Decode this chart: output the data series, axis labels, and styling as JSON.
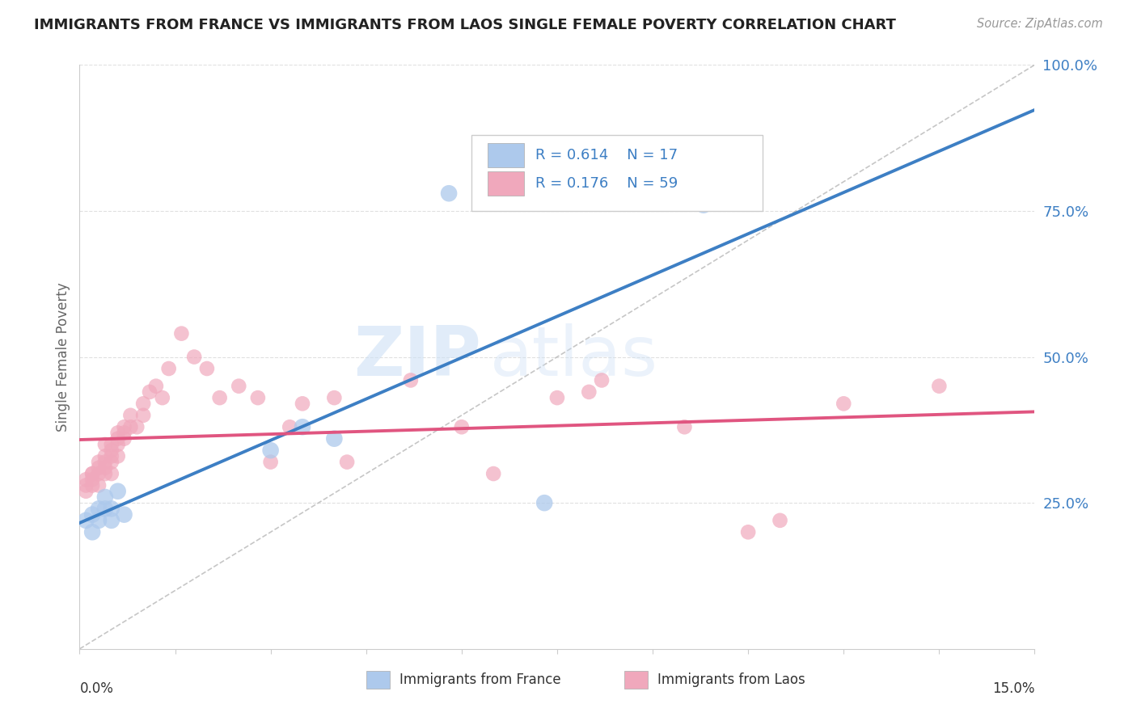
{
  "title": "IMMIGRANTS FROM FRANCE VS IMMIGRANTS FROM LAOS SINGLE FEMALE POVERTY CORRELATION CHART",
  "source": "Source: ZipAtlas.com",
  "ylabel": "Single Female Poverty",
  "xlim": [
    0.0,
    0.15
  ],
  "ylim": [
    0.0,
    1.0
  ],
  "france_R": 0.614,
  "france_N": 17,
  "laos_R": 0.176,
  "laos_N": 59,
  "france_color": "#adc9ec",
  "france_line_color": "#3d7fc4",
  "laos_color": "#f0a8bc",
  "laos_line_color": "#e05580",
  "ref_line_color": "#b8b8b8",
  "background_color": "#ffffff",
  "watermark_zip": "ZIP",
  "watermark_atlas": "atlas",
  "france_x": [
    0.001,
    0.002,
    0.002,
    0.003,
    0.003,
    0.004,
    0.004,
    0.005,
    0.005,
    0.006,
    0.007,
    0.03,
    0.035,
    0.04,
    0.058,
    0.073,
    0.098
  ],
  "france_y": [
    0.22,
    0.2,
    0.23,
    0.24,
    0.22,
    0.26,
    0.24,
    0.24,
    0.22,
    0.27,
    0.23,
    0.34,
    0.38,
    0.36,
    0.78,
    0.25,
    0.76
  ],
  "laos_x": [
    0.001,
    0.001,
    0.001,
    0.002,
    0.002,
    0.002,
    0.002,
    0.003,
    0.003,
    0.003,
    0.003,
    0.004,
    0.004,
    0.004,
    0.004,
    0.004,
    0.005,
    0.005,
    0.005,
    0.005,
    0.005,
    0.006,
    0.006,
    0.006,
    0.006,
    0.007,
    0.007,
    0.007,
    0.008,
    0.008,
    0.009,
    0.01,
    0.01,
    0.011,
    0.012,
    0.013,
    0.014,
    0.016,
    0.018,
    0.02,
    0.022,
    0.025,
    0.028,
    0.03,
    0.033,
    0.035,
    0.04,
    0.042,
    0.052,
    0.06,
    0.065,
    0.075,
    0.08,
    0.082,
    0.095,
    0.105,
    0.11,
    0.12,
    0.135
  ],
  "laos_y": [
    0.27,
    0.28,
    0.29,
    0.28,
    0.3,
    0.29,
    0.3,
    0.28,
    0.3,
    0.32,
    0.31,
    0.3,
    0.32,
    0.33,
    0.31,
    0.35,
    0.3,
    0.32,
    0.34,
    0.35,
    0.33,
    0.33,
    0.35,
    0.36,
    0.37,
    0.36,
    0.37,
    0.38,
    0.38,
    0.4,
    0.38,
    0.4,
    0.42,
    0.44,
    0.45,
    0.43,
    0.48,
    0.54,
    0.5,
    0.48,
    0.43,
    0.45,
    0.43,
    0.32,
    0.38,
    0.42,
    0.43,
    0.32,
    0.46,
    0.38,
    0.3,
    0.43,
    0.44,
    0.46,
    0.38,
    0.2,
    0.22,
    0.42,
    0.45
  ],
  "ytick_vals": [
    0.25,
    0.5,
    0.75,
    1.0
  ],
  "ytick_labels": [
    "25.0%",
    "50.0%",
    "75.0%",
    "100.0%"
  ],
  "grid_color": "#e0e0e0",
  "title_color": "#222222",
  "source_color": "#999999",
  "tick_color": "#3d7fc4",
  "axis_color": "#cccccc"
}
